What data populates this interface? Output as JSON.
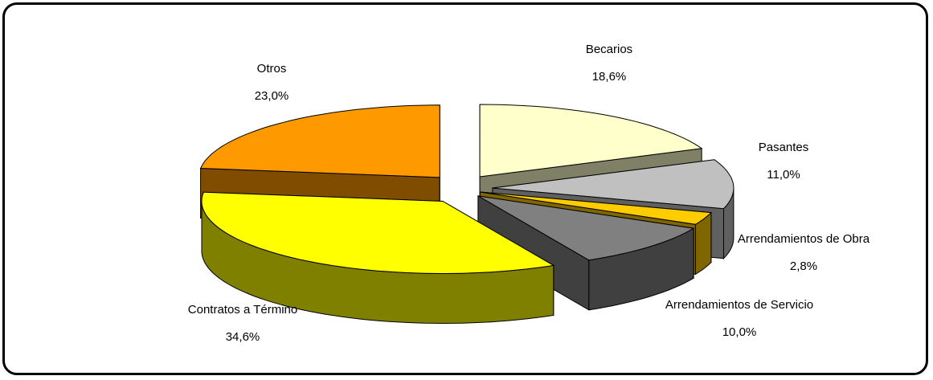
{
  "chart_data": {
    "type": "pie",
    "title": "",
    "categories": [
      "Becarios",
      "Pasantes",
      "Arrendamientos de Obra",
      "Arrendamientos de Servicio",
      "Contratos a Término",
      "Otros"
    ],
    "values": [
      18.6,
      11.0,
      2.8,
      10.0,
      34.6,
      23.0
    ],
    "value_labels": [
      "18,6%",
      "11,0%",
      "2,8%",
      "10,0%",
      "34,6%",
      "23,0%"
    ],
    "exploded": true,
    "three_d": true,
    "slices": [
      {
        "label": "Becarios",
        "value": 18.6,
        "value_label": "18,6%",
        "top_color": "#ffffcc",
        "side_color": "#808066"
      },
      {
        "label": "Pasantes",
        "value": 11.0,
        "value_label": "11,0%",
        "top_color": "#c0c0c0",
        "side_color": "#606060"
      },
      {
        "label": "Arrendamientos de Obra",
        "value": 2.8,
        "value_label": "2,8%",
        "top_color": "#ffcc00",
        "side_color": "#806600"
      },
      {
        "label": "Arrendamientos de Servicio",
        "value": 10.0,
        "value_label": "10,0%",
        "top_color": "#808080",
        "side_color": "#404040"
      },
      {
        "label": "Contratos a Término",
        "value": 34.6,
        "value_label": "34,6%",
        "top_color": "#ffff00",
        "side_color": "#808000"
      },
      {
        "label": "Otros",
        "value": 23.0,
        "value_label": "23,0%",
        "top_color": "#ff9900",
        "side_color": "#804c00"
      }
    ]
  }
}
